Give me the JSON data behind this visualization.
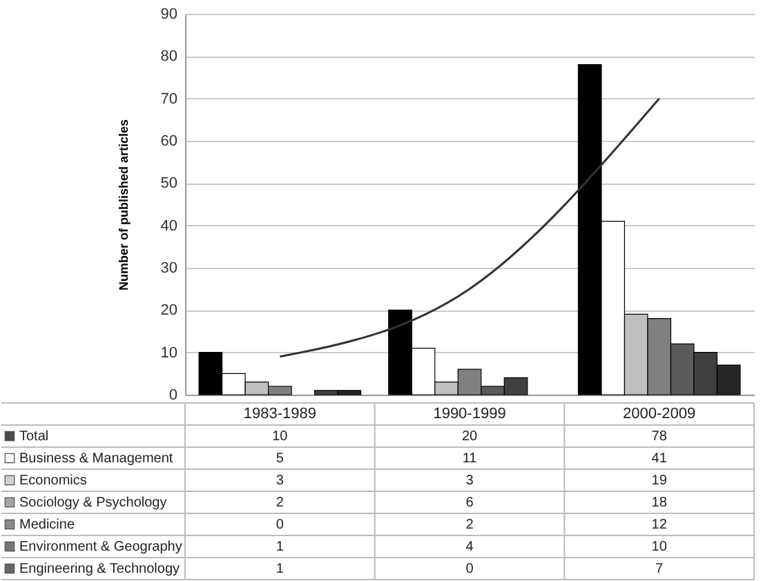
{
  "chart_data": {
    "type": "bar",
    "ylabel": "Number of published articles",
    "categories": [
      "1983-1989",
      "1990-1999",
      "2000-2009"
    ],
    "series": [
      {
        "name": "Total",
        "color": "#000000",
        "values": [
          10,
          20,
          78
        ],
        "value_labels": [
          "10",
          "20",
          "78"
        ]
      },
      {
        "name": "Business & Management",
        "color": "#ffffff",
        "values": [
          5,
          11,
          41
        ],
        "value_labels": [
          "5",
          "11",
          "41"
        ]
      },
      {
        "name": "Economics",
        "color": "#bfbfbf",
        "values": [
          3,
          3,
          19
        ],
        "value_labels": [
          "3",
          "3",
          "19"
        ]
      },
      {
        "name": "Sociology & Psychology",
        "color": "#808080",
        "values": [
          2,
          6,
          18
        ],
        "value_labels": [
          "2",
          "6",
          "18"
        ]
      },
      {
        "name": "Medicine",
        "color": "#5a5a5a",
        "values": [
          0,
          2,
          12
        ],
        "value_labels": [
          "0",
          "2",
          "12"
        ]
      },
      {
        "name": "Environment & Geography",
        "color": "#404040",
        "values": [
          1,
          4,
          10
        ],
        "value_labels": [
          "1",
          "4",
          "10"
        ]
      },
      {
        "name": "Engineering & Technology",
        "color": "#262626",
        "values": [
          1,
          0,
          7
        ],
        "value_labels": [
          "1",
          "0",
          "7"
        ]
      },
      {
        "type": "line",
        "color": "#333333",
        "values": [
          9,
          25,
          70
        ]
      }
    ],
    "ylim": [
      0,
      90
    ],
    "yticks": [
      0,
      10,
      20,
      30,
      40,
      50,
      60,
      70,
      80,
      90
    ],
    "grid": "y",
    "legend": "bottom left"
  }
}
